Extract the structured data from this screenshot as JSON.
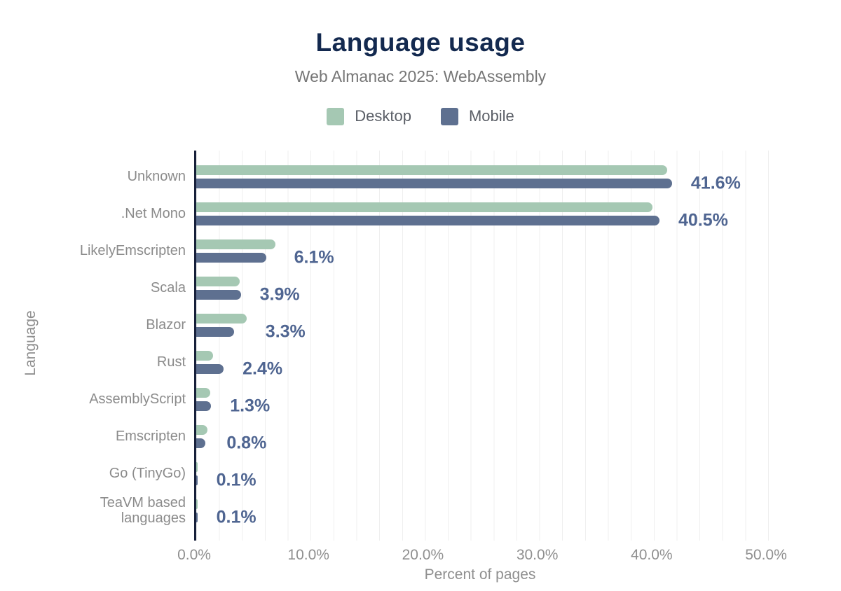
{
  "figure": {
    "title": "Language usage",
    "subtitle": "Web Almanac 2025: WebAssembly"
  },
  "legend": [
    {
      "name": "Desktop",
      "color": "#a5c8b3"
    },
    {
      "name": "Mobile",
      "color": "#5e7090"
    }
  ],
  "chart_data": {
    "type": "bar",
    "orientation": "horizontal",
    "title": "Language usage",
    "subtitle": "Web Almanac 2025: WebAssembly",
    "xlabel": "Percent of pages",
    "ylabel": "Language",
    "xlim": [
      0,
      54
    ],
    "xticks": [
      "0.0%",
      "10.0%",
      "20.0%",
      "30.0%",
      "40.0%",
      "50.0%"
    ],
    "xtick_values": [
      0,
      10,
      20,
      30,
      40,
      50
    ],
    "grid": "minor-vertical",
    "grid_minor_step_percent": 2,
    "legend_position": "top",
    "categories": [
      "Unknown",
      ".Net Mono",
      "LikelyEmscripten",
      "Scala",
      "Blazor",
      "Rust",
      "AssemblyScript",
      "Emscripten",
      "Go (TinyGo)",
      "TeaVM based languages"
    ],
    "series": [
      {
        "name": "Desktop",
        "color": "#a5c8b3",
        "values": [
          41.2,
          39.9,
          6.9,
          3.8,
          4.4,
          1.5,
          1.2,
          1.0,
          0.1,
          0.1
        ]
      },
      {
        "name": "Mobile",
        "color": "#5e7090",
        "values": [
          41.6,
          40.5,
          6.1,
          3.9,
          3.3,
          2.4,
          1.3,
          0.8,
          0.1,
          0.1
        ]
      }
    ],
    "value_labels": [
      "41.6%",
      "40.5%",
      "6.1%",
      "3.9%",
      "3.3%",
      "2.4%",
      "1.3%",
      "0.8%",
      "0.1%",
      "0.1%"
    ]
  },
  "colors": {
    "title": "#13294f",
    "subtitle": "#767676",
    "value_label": "#4f6591",
    "category_label": "#8b8b8b",
    "tick_label": "#8f8f8f",
    "axis_line": "#17203a",
    "gridline": "#efefef"
  }
}
